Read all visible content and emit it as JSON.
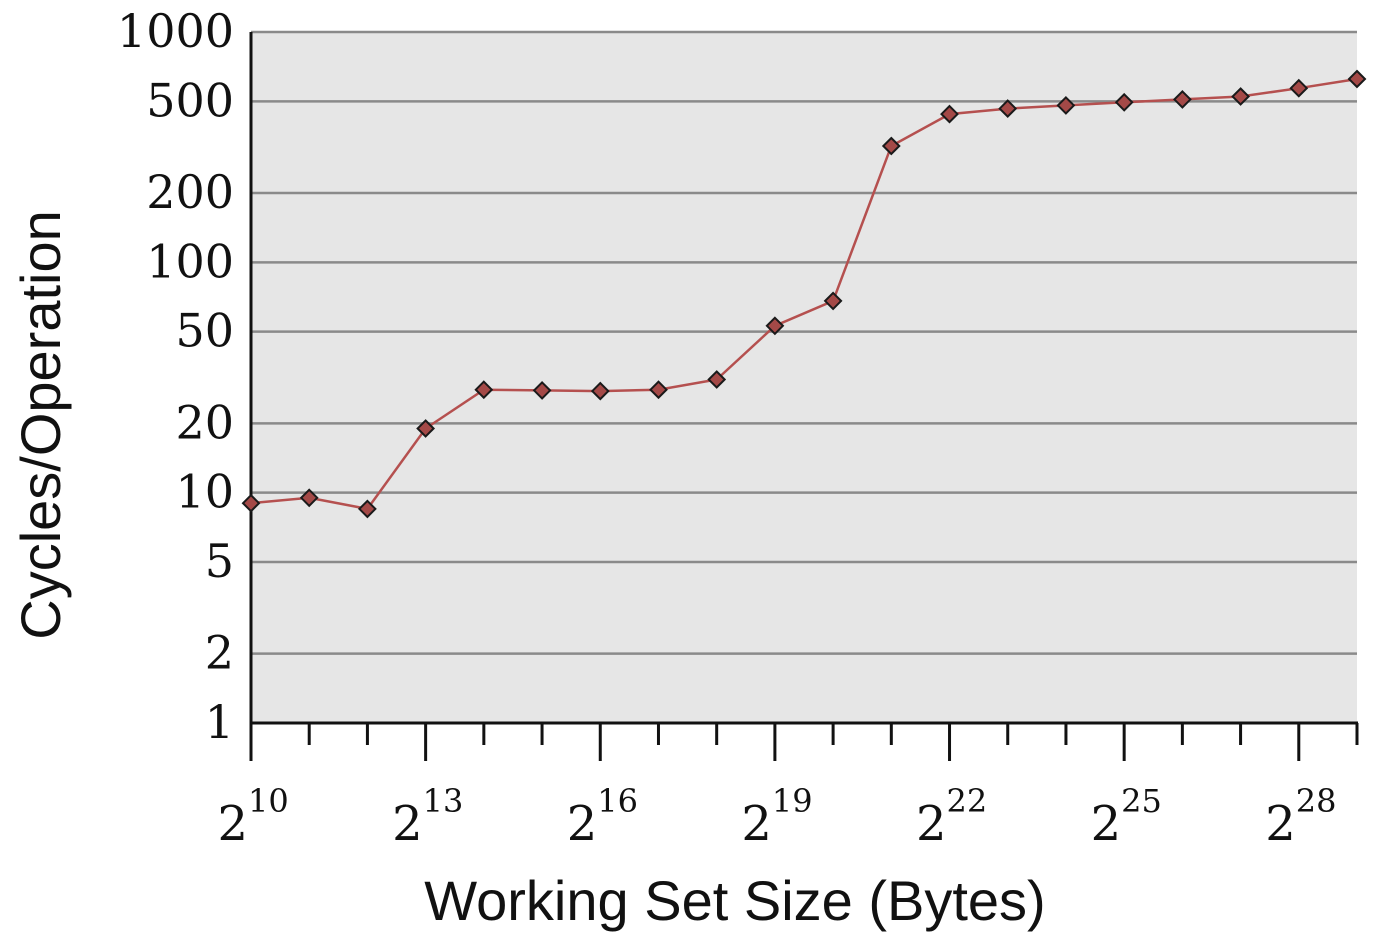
{
  "chart_data": {
    "type": "line",
    "xlabel": "Working Set Size (Bytes)",
    "ylabel": "Cycles/Operation",
    "x_scale": "log2",
    "y_scale": "log10",
    "xlim_exponent": [
      10,
      29
    ],
    "ylim": [
      1,
      1000
    ],
    "y_ticks": [
      1,
      2,
      5,
      10,
      20,
      50,
      100,
      200,
      500,
      1000
    ],
    "x_tick_base": "2",
    "x_tick_exponents": [
      "10",
      "13",
      "16",
      "19",
      "22",
      "25",
      "28"
    ],
    "grid": true,
    "colors": {
      "series": "#b5504f",
      "marker_fill": "#a44947",
      "marker_stroke": "#1a1a1a",
      "plot_background": "#e6e6e6",
      "gridline": "#8a8a8a"
    },
    "series": [
      {
        "x_exponent": [
          10,
          11,
          12,
          13,
          14,
          15,
          16,
          17,
          18,
          19,
          20,
          21,
          22,
          23,
          24,
          25,
          26,
          27,
          28,
          29
        ],
        "values": [
          9,
          9.5,
          8.5,
          19,
          28,
          27.8,
          27.6,
          28,
          31,
          53,
          68,
          320,
          440,
          465,
          480,
          495,
          510,
          525,
          570,
          625
        ]
      }
    ]
  }
}
